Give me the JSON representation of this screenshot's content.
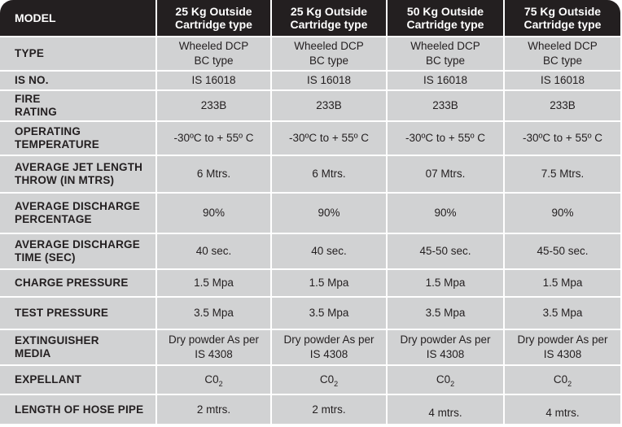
{
  "header": {
    "model": "MODEL",
    "col1": [
      "25 Kg Outside",
      "Cartridge type"
    ],
    "col2": [
      "25 Kg Outside",
      "Cartridge type"
    ],
    "col3": [
      "50 Kg Outside",
      "Cartridge type"
    ],
    "col4": [
      "75 Kg Outside",
      "Cartridge type"
    ]
  },
  "rows": {
    "type": {
      "label": "TYPE",
      "values": [
        [
          "Wheeled DCP",
          "BC type"
        ],
        [
          "Wheeled DCP",
          "BC type"
        ],
        [
          "Wheeled DCP",
          "BC type"
        ],
        [
          "Wheeled DCP",
          "BC type"
        ]
      ]
    },
    "is_no": {
      "label": "IS NO.",
      "values": [
        "IS 16018",
        "IS 16018",
        "IS 16018",
        "IS 16018"
      ]
    },
    "fire_rating": {
      "label": [
        "FIRE",
        "RATING"
      ],
      "values": [
        "233B",
        "233B",
        "233B",
        "233B"
      ]
    },
    "operating_temperature": {
      "label": [
        "OPERATING",
        "TEMPERATURE"
      ],
      "values": [
        "-30ºC to + 55º C",
        "-30ºC to + 55º C",
        "-30ºC to + 55º C",
        "-30ºC to + 55º C"
      ]
    },
    "jet_length": {
      "label": [
        "AVERAGE JET LENGTH",
        "THROW (IN MTRS)"
      ],
      "values": [
        "6 Mtrs.",
        "6 Mtrs.",
        "07 Mtrs.",
        "7.5 Mtrs."
      ]
    },
    "discharge_percentage": {
      "label": [
        "AVERAGE DISCHARGE",
        "PERCENTAGE"
      ],
      "values": [
        "90%",
        "90%",
        "90%",
        "90%"
      ]
    },
    "discharge_time": {
      "label": [
        "AVERAGE DISCHARGE",
        "TIME (SEC)"
      ],
      "values": [
        "40 sec.",
        "40 sec.",
        "45-50 sec.",
        "45-50 sec."
      ]
    },
    "charge_pressure": {
      "label": "CHARGE PRESSURE",
      "values": [
        "1.5 Mpa",
        "1.5 Mpa",
        "1.5 Mpa",
        "1.5 Mpa"
      ]
    },
    "test_pressure": {
      "label": "TEST PRESSURE",
      "values": [
        "3.5 Mpa",
        "3.5 Mpa",
        "3.5 Mpa",
        "3.5 Mpa"
      ]
    },
    "media": {
      "label": [
        "EXTINGUISHER",
        "MEDIA"
      ],
      "values": [
        [
          "Dry powder As per",
          "IS 4308"
        ],
        [
          "Dry powder As per",
          "IS 4308"
        ],
        [
          "Dry powder As per",
          "IS 4308"
        ],
        [
          "Dry powder As per",
          "IS 4308"
        ]
      ]
    },
    "expellant": {
      "label": "EXPELLANT",
      "base": "C0",
      "sub": "2"
    },
    "hose_length": {
      "label": "LENGTH OF HOSE PIPE",
      "values": [
        "2 mtrs.",
        "2 mtrs.",
        "4 mtrs.",
        "4 mtrs."
      ]
    }
  },
  "colors": {
    "header_bg": "#231f20",
    "cell_bg": "#d1d2d3",
    "text": "#231f20",
    "divider": "#ffffff"
  }
}
